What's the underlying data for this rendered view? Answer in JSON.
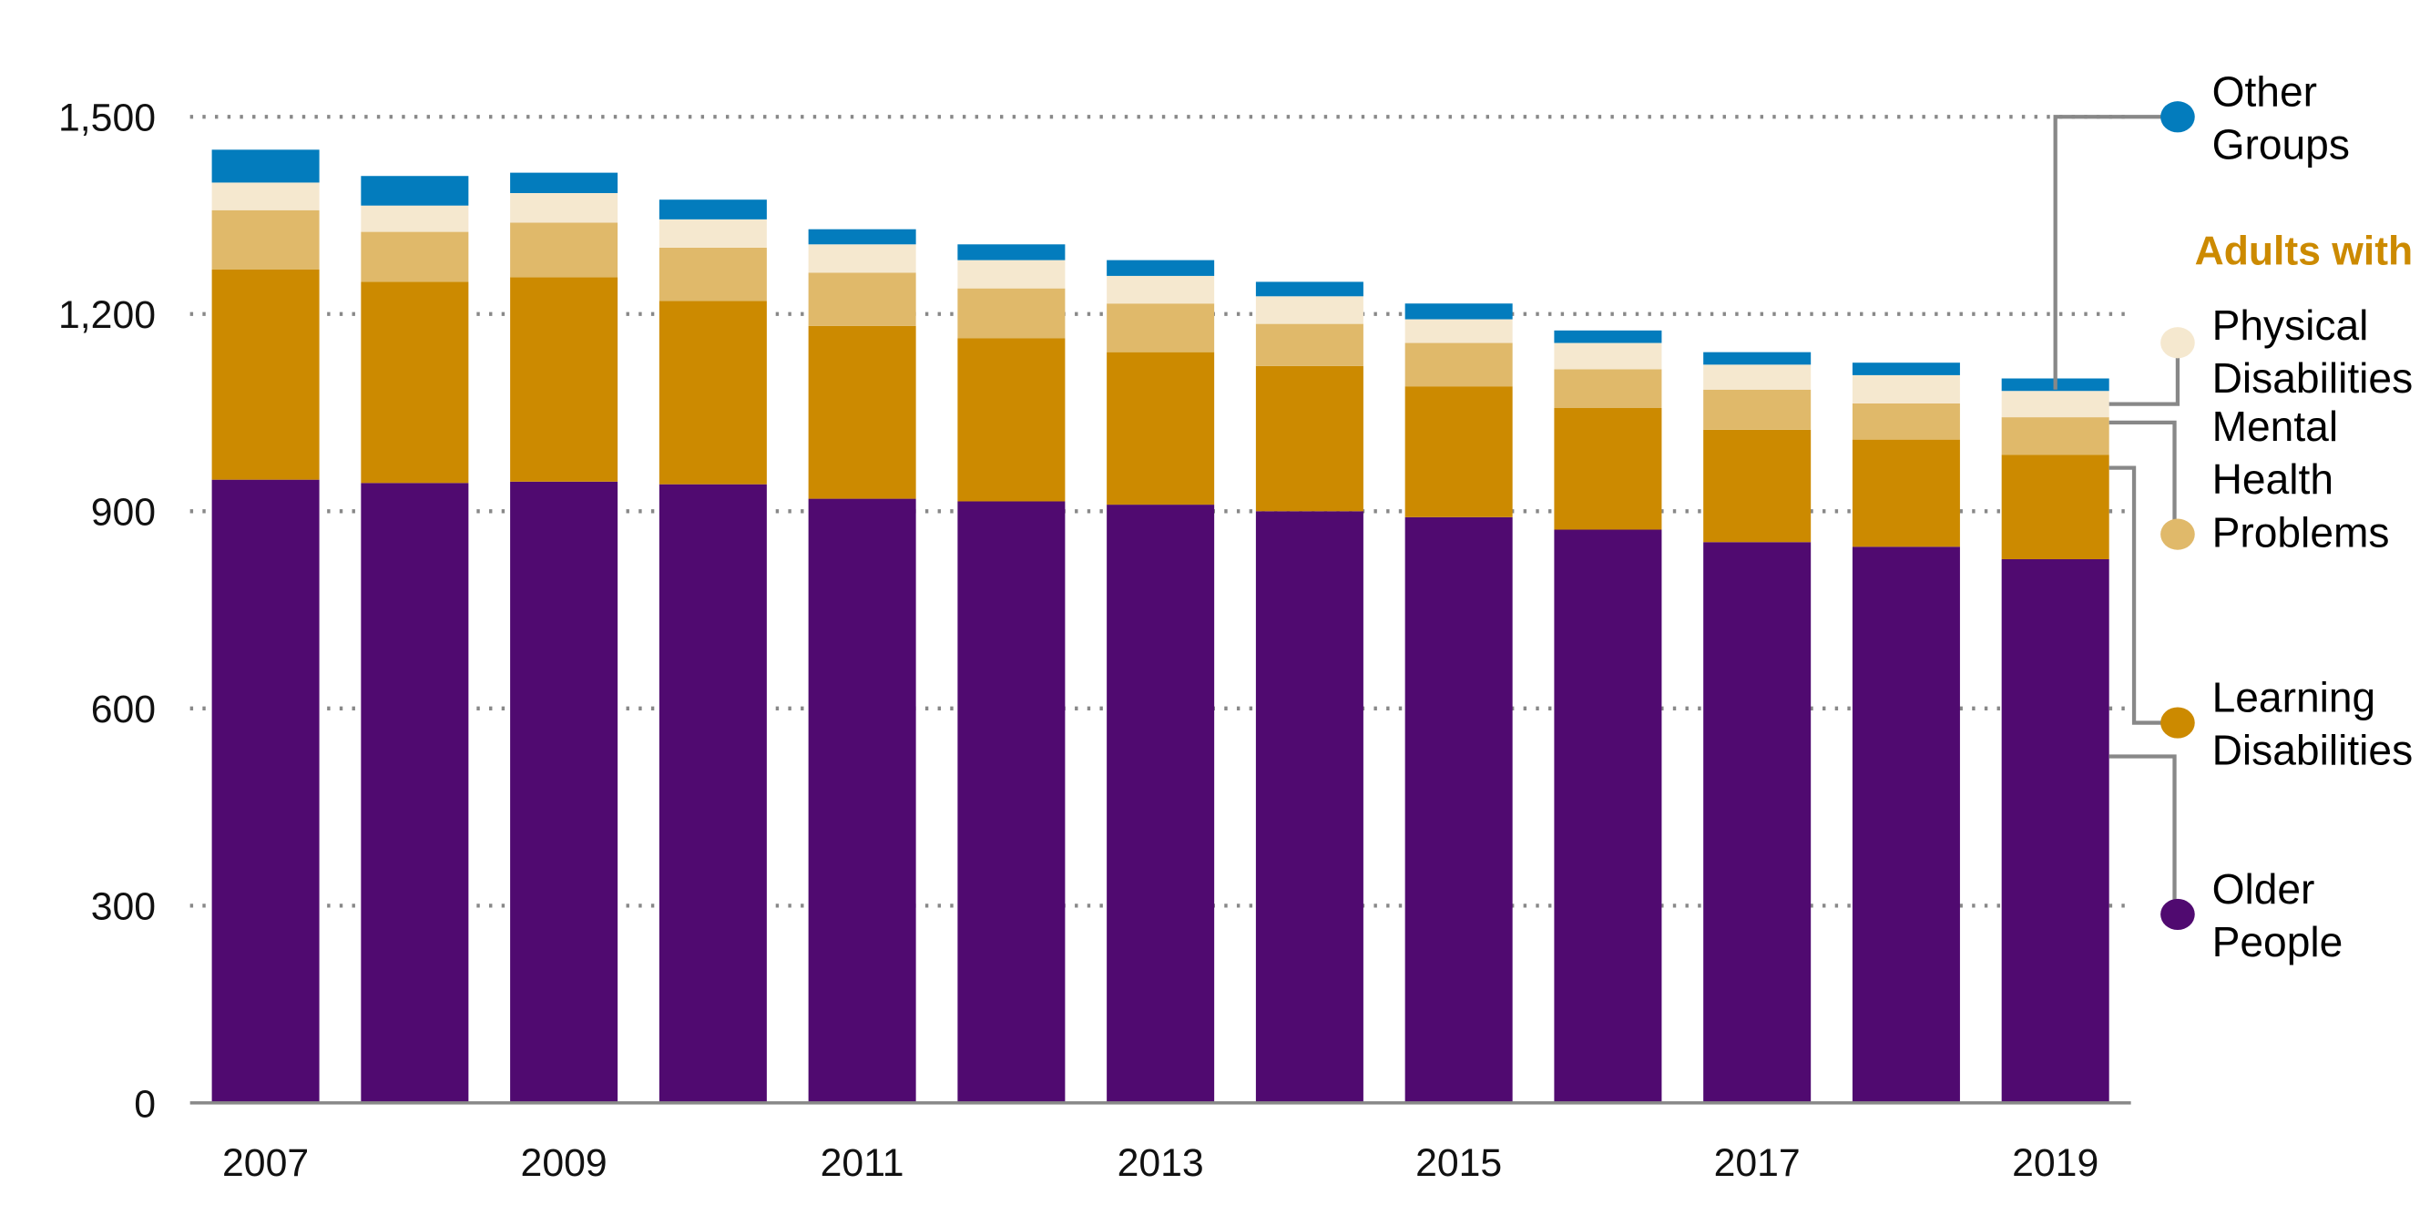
{
  "chart_data": {
    "type": "bar",
    "stacked": true,
    "categories": [
      "2007",
      "2008",
      "2009",
      "2010",
      "2011",
      "2012",
      "2013",
      "2014",
      "2015",
      "2016",
      "2017",
      "2018",
      "2019"
    ],
    "x_tick_labels": [
      "2007",
      "2009",
      "2011",
      "2013",
      "2015",
      "2017",
      "2019"
    ],
    "ylim": [
      0,
      1500
    ],
    "y_ticks": [
      0,
      300,
      600,
      900,
      1200,
      1500
    ],
    "y_tick_labels": [
      "0",
      "300",
      "600",
      "900",
      "1,200",
      "1,500"
    ],
    "grid": "horizontal dotted",
    "legend_placement": "right",
    "legend_heading": "Adults with",
    "legend_heading_color": "#cc8a00",
    "series": [
      {
        "name": "Older People",
        "color": "#500a70",
        "values": [
          948,
          943,
          945,
          941,
          919,
          915,
          910,
          900,
          891,
          872,
          853,
          846,
          827
        ]
      },
      {
        "name": "Learning Disabilities",
        "color": "#cc8a00",
        "values": [
          320,
          306,
          311,
          279,
          263,
          248,
          232,
          221,
          199,
          185,
          171,
          163,
          159
        ]
      },
      {
        "name": "Mental Health Problems",
        "color": "#e0b96a",
        "values": [
          90,
          76,
          83,
          81,
          81,
          76,
          74,
          64,
          66,
          59,
          61,
          55,
          57
        ]
      },
      {
        "name": "Physical Disabilities",
        "color": "#f5e8cf",
        "values": [
          42,
          40,
          45,
          43,
          43,
          43,
          42,
          42,
          36,
          40,
          38,
          43,
          40
        ]
      },
      {
        "name": "Other Groups",
        "color": "#037cbd",
        "values": [
          50,
          45,
          31,
          30,
          23,
          24,
          24,
          22,
          24,
          19,
          19,
          19,
          19
        ]
      }
    ],
    "legend_labels": [
      {
        "lines": [
          "Other",
          "Groups"
        ]
      },
      {
        "lines": [
          "Physical",
          "Disabilities"
        ]
      },
      {
        "lines": [
          "Mental",
          "Health",
          "Problems"
        ]
      },
      {
        "lines": [
          "Learning",
          "Disabilities"
        ]
      },
      {
        "lines": [
          "Older",
          "People"
        ]
      }
    ]
  }
}
